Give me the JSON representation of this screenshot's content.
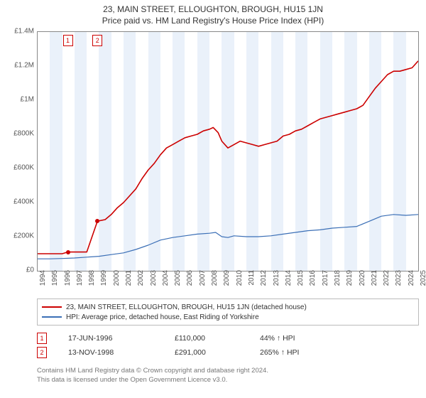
{
  "title_line1": "23, MAIN STREET, ELLOUGHTON, BROUGH, HU15 1JN",
  "title_line2": "Price paid vs. HM Land Registry's House Price Index (HPI)",
  "chart": {
    "type": "line",
    "background_color": "#ffffff",
    "grid_color": "#dddddd",
    "axis_color": "#888888",
    "yaxis": {
      "min": 0,
      "max": 1400000,
      "tick_step": 200000,
      "ticks": [
        0,
        200000,
        400000,
        600000,
        800000,
        1000000,
        1200000,
        1400000
      ],
      "tick_labels": [
        "£0",
        "£200K",
        "£400K",
        "£600K",
        "£800K",
        "£1M",
        "£1.2M",
        "£1.4M"
      ],
      "label_fontsize": 10
    },
    "xaxis": {
      "min": 1994,
      "max": 2025,
      "ticks": [
        1994,
        1995,
        1996,
        1997,
        1998,
        1999,
        2000,
        2001,
        2002,
        2003,
        2004,
        2005,
        2006,
        2007,
        2008,
        2009,
        2010,
        2011,
        2012,
        2013,
        2014,
        2015,
        2016,
        2017,
        2018,
        2019,
        2020,
        2021,
        2022,
        2023,
        2024,
        2025
      ],
      "tick_labels": [
        "1994",
        "1995",
        "1996",
        "1997",
        "1998",
        "1999",
        "2000",
        "2001",
        "2002",
        "2003",
        "2004",
        "2005",
        "2006",
        "2007",
        "2008",
        "2009",
        "2010",
        "2011",
        "2012",
        "2013",
        "2014",
        "2015",
        "2016",
        "2017",
        "2018",
        "2019",
        "2020",
        "2021",
        "2022",
        "2023",
        "2024",
        "2025"
      ],
      "label_fontsize": 10,
      "label_rotation": -90
    },
    "alt_bands": {
      "color": "#eaf1fa",
      "years": [
        1995,
        1997,
        1999,
        2001,
        2003,
        2005,
        2007,
        2009,
        2011,
        2013,
        2015,
        2017,
        2019,
        2021,
        2023
      ]
    },
    "series": [
      {
        "id": "property",
        "label": "23, MAIN STREET, ELLOUGHTON, BROUGH, HU15 1JN (detached house)",
        "color": "#cc0000",
        "line_width": 1.6,
        "data": [
          [
            1994.0,
            100000
          ],
          [
            1995.0,
            100000
          ],
          [
            1996.0,
            100000
          ],
          [
            1996.46,
            110000
          ],
          [
            1997.0,
            110000
          ],
          [
            1998.0,
            110000
          ],
          [
            1998.87,
            291000
          ],
          [
            1999.5,
            300000
          ],
          [
            2000.0,
            330000
          ],
          [
            2000.5,
            370000
          ],
          [
            2001.0,
            400000
          ],
          [
            2001.5,
            440000
          ],
          [
            2002.0,
            480000
          ],
          [
            2002.5,
            540000
          ],
          [
            2003.0,
            590000
          ],
          [
            2003.5,
            630000
          ],
          [
            2004.0,
            680000
          ],
          [
            2004.5,
            720000
          ],
          [
            2005.0,
            740000
          ],
          [
            2005.5,
            760000
          ],
          [
            2006.0,
            780000
          ],
          [
            2006.5,
            790000
          ],
          [
            2007.0,
            800000
          ],
          [
            2007.5,
            820000
          ],
          [
            2008.0,
            830000
          ],
          [
            2008.3,
            840000
          ],
          [
            2008.7,
            810000
          ],
          [
            2009.0,
            760000
          ],
          [
            2009.5,
            720000
          ],
          [
            2010.0,
            740000
          ],
          [
            2010.5,
            760000
          ],
          [
            2011.0,
            750000
          ],
          [
            2011.5,
            740000
          ],
          [
            2012.0,
            730000
          ],
          [
            2012.5,
            740000
          ],
          [
            2013.0,
            750000
          ],
          [
            2013.5,
            760000
          ],
          [
            2014.0,
            790000
          ],
          [
            2014.5,
            800000
          ],
          [
            2015.0,
            820000
          ],
          [
            2015.5,
            830000
          ],
          [
            2016.0,
            850000
          ],
          [
            2016.5,
            870000
          ],
          [
            2017.0,
            890000
          ],
          [
            2017.5,
            900000
          ],
          [
            2018.0,
            910000
          ],
          [
            2018.5,
            920000
          ],
          [
            2019.0,
            930000
          ],
          [
            2019.5,
            940000
          ],
          [
            2020.0,
            950000
          ],
          [
            2020.5,
            970000
          ],
          [
            2021.0,
            1020000
          ],
          [
            2021.5,
            1070000
          ],
          [
            2022.0,
            1110000
          ],
          [
            2022.5,
            1150000
          ],
          [
            2023.0,
            1170000
          ],
          [
            2023.5,
            1170000
          ],
          [
            2024.0,
            1180000
          ],
          [
            2024.5,
            1190000
          ],
          [
            2025.0,
            1230000
          ]
        ]
      },
      {
        "id": "hpi",
        "label": "HPI: Average price, detached house, East Riding of Yorkshire",
        "color": "#3b6fb6",
        "line_width": 1.2,
        "data": [
          [
            1994.0,
            70000
          ],
          [
            1995.0,
            70000
          ],
          [
            1996.0,
            72000
          ],
          [
            1997.0,
            75000
          ],
          [
            1998.0,
            80000
          ],
          [
            1999.0,
            85000
          ],
          [
            2000.0,
            95000
          ],
          [
            2001.0,
            105000
          ],
          [
            2002.0,
            125000
          ],
          [
            2003.0,
            150000
          ],
          [
            2004.0,
            180000
          ],
          [
            2005.0,
            195000
          ],
          [
            2006.0,
            205000
          ],
          [
            2007.0,
            215000
          ],
          [
            2008.0,
            220000
          ],
          [
            2008.5,
            225000
          ],
          [
            2009.0,
            200000
          ],
          [
            2009.5,
            195000
          ],
          [
            2010.0,
            205000
          ],
          [
            2011.0,
            200000
          ],
          [
            2012.0,
            200000
          ],
          [
            2013.0,
            205000
          ],
          [
            2014.0,
            215000
          ],
          [
            2015.0,
            225000
          ],
          [
            2016.0,
            235000
          ],
          [
            2017.0,
            240000
          ],
          [
            2018.0,
            250000
          ],
          [
            2019.0,
            255000
          ],
          [
            2020.0,
            260000
          ],
          [
            2021.0,
            290000
          ],
          [
            2022.0,
            320000
          ],
          [
            2023.0,
            330000
          ],
          [
            2024.0,
            325000
          ],
          [
            2025.0,
            330000
          ]
        ]
      }
    ],
    "sale_markers": [
      {
        "n": "1",
        "label": "1",
        "x": 1996.46,
        "y": 110000,
        "color": "#cc0000"
      },
      {
        "n": "2",
        "label": "2",
        "x": 1998.87,
        "y": 291000,
        "color": "#cc0000"
      }
    ]
  },
  "legend": {
    "border_color": "#bbbbbb",
    "fontsize": 10,
    "items": [
      {
        "color": "#cc0000",
        "label": "23, MAIN STREET, ELLOUGHTON, BROUGH, HU15 1JN (detached house)"
      },
      {
        "color": "#3b6fb6",
        "label": "HPI: Average price, detached house, East Riding of Yorkshire"
      }
    ]
  },
  "sale_rows": [
    {
      "n": "1",
      "date": "17-JUN-1996",
      "price": "£110,000",
      "pct": "44% ↑ HPI"
    },
    {
      "n": "2",
      "date": "13-NOV-1998",
      "price": "£291,000",
      "pct": "265% ↑ HPI"
    }
  ],
  "footer_line1": "Contains HM Land Registry data © Crown copyright and database right 2024.",
  "footer_line2": "This data is licensed under the Open Government Licence v3.0."
}
